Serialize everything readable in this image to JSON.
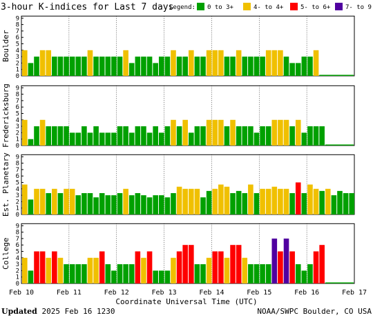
{
  "chart_data": {
    "type": "bar",
    "title": "3-hour K-indices for Last 7 days",
    "xlabel": "Coordinate Universal Time (UTC)",
    "ylim": [
      0,
      9
    ],
    "y_ticks": [
      "0",
      "1",
      "2",
      "3",
      "4",
      "5",
      "6",
      "7",
      "8",
      "9"
    ],
    "x_ticks": [
      "Feb 10",
      "Feb 11",
      "Feb 12",
      "Feb 13",
      "Feb 14",
      "Feb 15",
      "Feb 16",
      "Feb 17"
    ],
    "bar_interval_hours": 3,
    "legend": {
      "label": "Legend:",
      "items": [
        {
          "label": "0 to 3+",
          "color": "#00a000"
        },
        {
          "label": "4- to 4+",
          "color": "#f0c000"
        },
        {
          "label": "5- to 6+",
          "color": "#ff0000"
        },
        {
          "label": "7- to 9",
          "color": "#5000a0"
        }
      ]
    },
    "panels": [
      {
        "name": "Boulder",
        "values": [
          4,
          2,
          3,
          4,
          4,
          3,
          3,
          3,
          3,
          3,
          3,
          4,
          3,
          3,
          3,
          3,
          3,
          4,
          2,
          3,
          3,
          3,
          2,
          3,
          3,
          4,
          3,
          3,
          4,
          3,
          3,
          4,
          4,
          4,
          3,
          3,
          4,
          3,
          3,
          3,
          3,
          4,
          4,
          4,
          3,
          2,
          2,
          3,
          3,
          4
        ]
      },
      {
        "name": "Fredericksburg",
        "values": [
          4,
          1,
          3,
          4,
          3,
          3,
          3,
          3,
          2,
          2,
          3,
          2,
          3,
          2,
          2,
          2,
          3,
          3,
          2,
          3,
          3,
          2,
          3,
          2,
          3,
          4,
          3,
          4,
          2,
          3,
          3,
          4,
          4,
          4,
          3,
          4,
          3,
          3,
          3,
          2,
          3,
          3,
          4,
          4,
          4,
          3,
          4,
          2,
          3,
          3,
          3
        ]
      },
      {
        "name": "Est. Planetary",
        "values": [
          4.67,
          2.33,
          4,
          4,
          3.33,
          4,
          3.33,
          4,
          4,
          3,
          3.33,
          3.33,
          2.67,
          3.33,
          3,
          3,
          3.33,
          4,
          3,
          3.33,
          3,
          2.67,
          3,
          3,
          2.67,
          3.33,
          4.33,
          4,
          4,
          4,
          2.67,
          3.67,
          4,
          4.67,
          4.33,
          3.33,
          3.67,
          3.33,
          4.67,
          3.33,
          4,
          4,
          4.33,
          4,
          4,
          3.33,
          5,
          3.33,
          4.67,
          4,
          3.67,
          4,
          3,
          3.67,
          3.33,
          3.33
        ]
      },
      {
        "name": "College",
        "values": [
          4,
          2,
          5,
          5,
          4,
          5,
          4,
          3,
          3,
          3,
          3,
          4,
          4,
          5,
          3,
          2,
          3,
          3,
          3,
          5,
          4,
          5,
          2,
          2,
          2,
          4,
          5,
          6,
          6,
          3,
          3,
          4,
          5,
          5,
          4,
          6,
          6,
          4,
          3,
          3,
          3,
          3,
          7,
          5,
          7,
          5,
          3,
          2,
          3,
          5,
          6
        ]
      }
    ]
  }
}
